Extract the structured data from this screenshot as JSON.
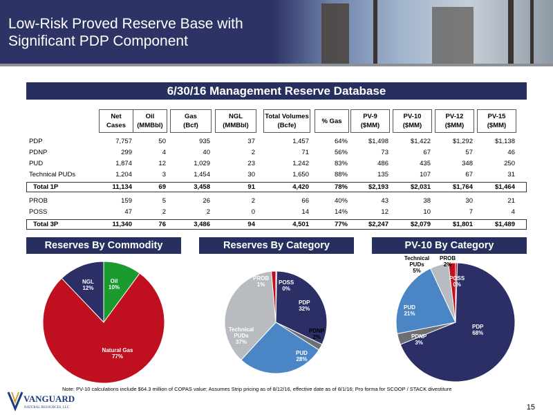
{
  "header": {
    "title_line1": "Low-Risk Proved Reserve Base with",
    "title_line2": "Significant PDP Component"
  },
  "table": {
    "title": "6/30/16 Management Reserve Database",
    "columns": [
      {
        "line1": "Net",
        "line2": "Cases"
      },
      {
        "line1": "Oil",
        "line2": "(MMBbl)"
      },
      {
        "line1": "Gas",
        "line2": "(Bcf)"
      },
      {
        "line1": "NGL",
        "line2": "(MMBbl)"
      },
      {
        "line1": "Total Volumes",
        "line2": "(Bcfe)"
      },
      {
        "line1": "% Gas",
        "line2": ""
      },
      {
        "line1": "PV-9",
        "line2": "($MM)"
      },
      {
        "line1": "PV-10",
        "line2": "($MM)"
      },
      {
        "line1": "PV-12",
        "line2": "($MM)"
      },
      {
        "line1": "PV-15",
        "line2": "($MM)"
      }
    ],
    "rows": [
      {
        "label": "PDP",
        "values": [
          "7,757",
          "50",
          "935",
          "37",
          "1,457",
          "64%",
          "$1,498",
          "$1,422",
          "$1,292",
          "$1,138"
        ]
      },
      {
        "label": "PDNP",
        "values": [
          "299",
          "4",
          "40",
          "2",
          "71",
          "56%",
          "73",
          "67",
          "57",
          "46"
        ]
      },
      {
        "label": "PUD",
        "values": [
          "1,874",
          "12",
          "1,029",
          "23",
          "1,242",
          "83%",
          "486",
          "435",
          "348",
          "250"
        ]
      },
      {
        "label": "Technical PUDs",
        "values": [
          "1,204",
          "3",
          "1,454",
          "30",
          "1,650",
          "88%",
          "135",
          "107",
          "67",
          "31"
        ]
      },
      {
        "label": "Total 1P",
        "values": [
          "11,134",
          "69",
          "3,458",
          "91",
          "4,420",
          "78%",
          "$2,193",
          "$2,031",
          "$1,764",
          "$1,464"
        ]
      },
      {
        "label": "PROB",
        "values": [
          "159",
          "5",
          "26",
          "2",
          "66",
          "40%",
          "43",
          "38",
          "30",
          "21"
        ]
      },
      {
        "label": "POSS",
        "values": [
          "47",
          "2",
          "2",
          "0",
          "14",
          "14%",
          "12",
          "10",
          "7",
          "4"
        ]
      },
      {
        "label": "Total 3P",
        "values": [
          "11,340",
          "76",
          "3,486",
          "94",
          "4,501",
          "77%",
          "$2,247",
          "$2,079",
          "$1,801",
          "$1,489"
        ]
      }
    ]
  },
  "sections": {
    "commodity": "Reserves By Commodity",
    "category": "Reserves By Category",
    "pv10": "PV-10 By Category"
  },
  "chart_data": [
    {
      "type": "pie",
      "title": "Reserves By Commodity",
      "labels": [
        "Oil",
        "Natural Gas",
        "NGL"
      ],
      "values": [
        10,
        77,
        12
      ],
      "value_labels": [
        "10%",
        "77%",
        "12%"
      ],
      "colors": [
        "#1b9b2f",
        "#c01020",
        "#2b2f66"
      ]
    },
    {
      "type": "pie",
      "title": "Reserves By Category",
      "labels": [
        "POSS",
        "PDP",
        "PDNP",
        "PUD",
        "Technical PUDs",
        "PROB"
      ],
      "values": [
        0.3,
        32,
        2,
        28,
        37,
        1.4
      ],
      "value_labels": [
        "0%",
        "32%",
        "2%",
        "28%",
        "37%",
        "1%"
      ],
      "colors": [
        "#c01020",
        "#2b2f66",
        "#6d6f73",
        "#4a86c5",
        "#b8bbbf",
        "#c01020"
      ]
    },
    {
      "type": "pie",
      "title": "PV-10 By Category",
      "labels": [
        "POSS",
        "PDP",
        "PDNP",
        "PUD",
        "Technical PUDs",
        "PROB"
      ],
      "values": [
        0.5,
        68,
        3,
        21,
        5,
        1.9
      ],
      "value_labels": [
        "0%",
        "68%",
        "3%",
        "21%",
        "5%",
        "2%"
      ],
      "colors": [
        "#c01020",
        "#2b2f66",
        "#6d6f73",
        "#4a86c5",
        "#b8bbbf",
        "#c01020"
      ]
    }
  ],
  "footer": {
    "note": "Note: PV-10 calculations include $64.3 million of COPAS value; Assumes Strip pricing as of 8/12/16, effective date as of 8/1/16; Pro forma for SCOOP / STACK divestiture",
    "page": "15",
    "logo_name": "VANGUARD",
    "logo_sub": "NATURAL RESOURCES, LLC"
  }
}
